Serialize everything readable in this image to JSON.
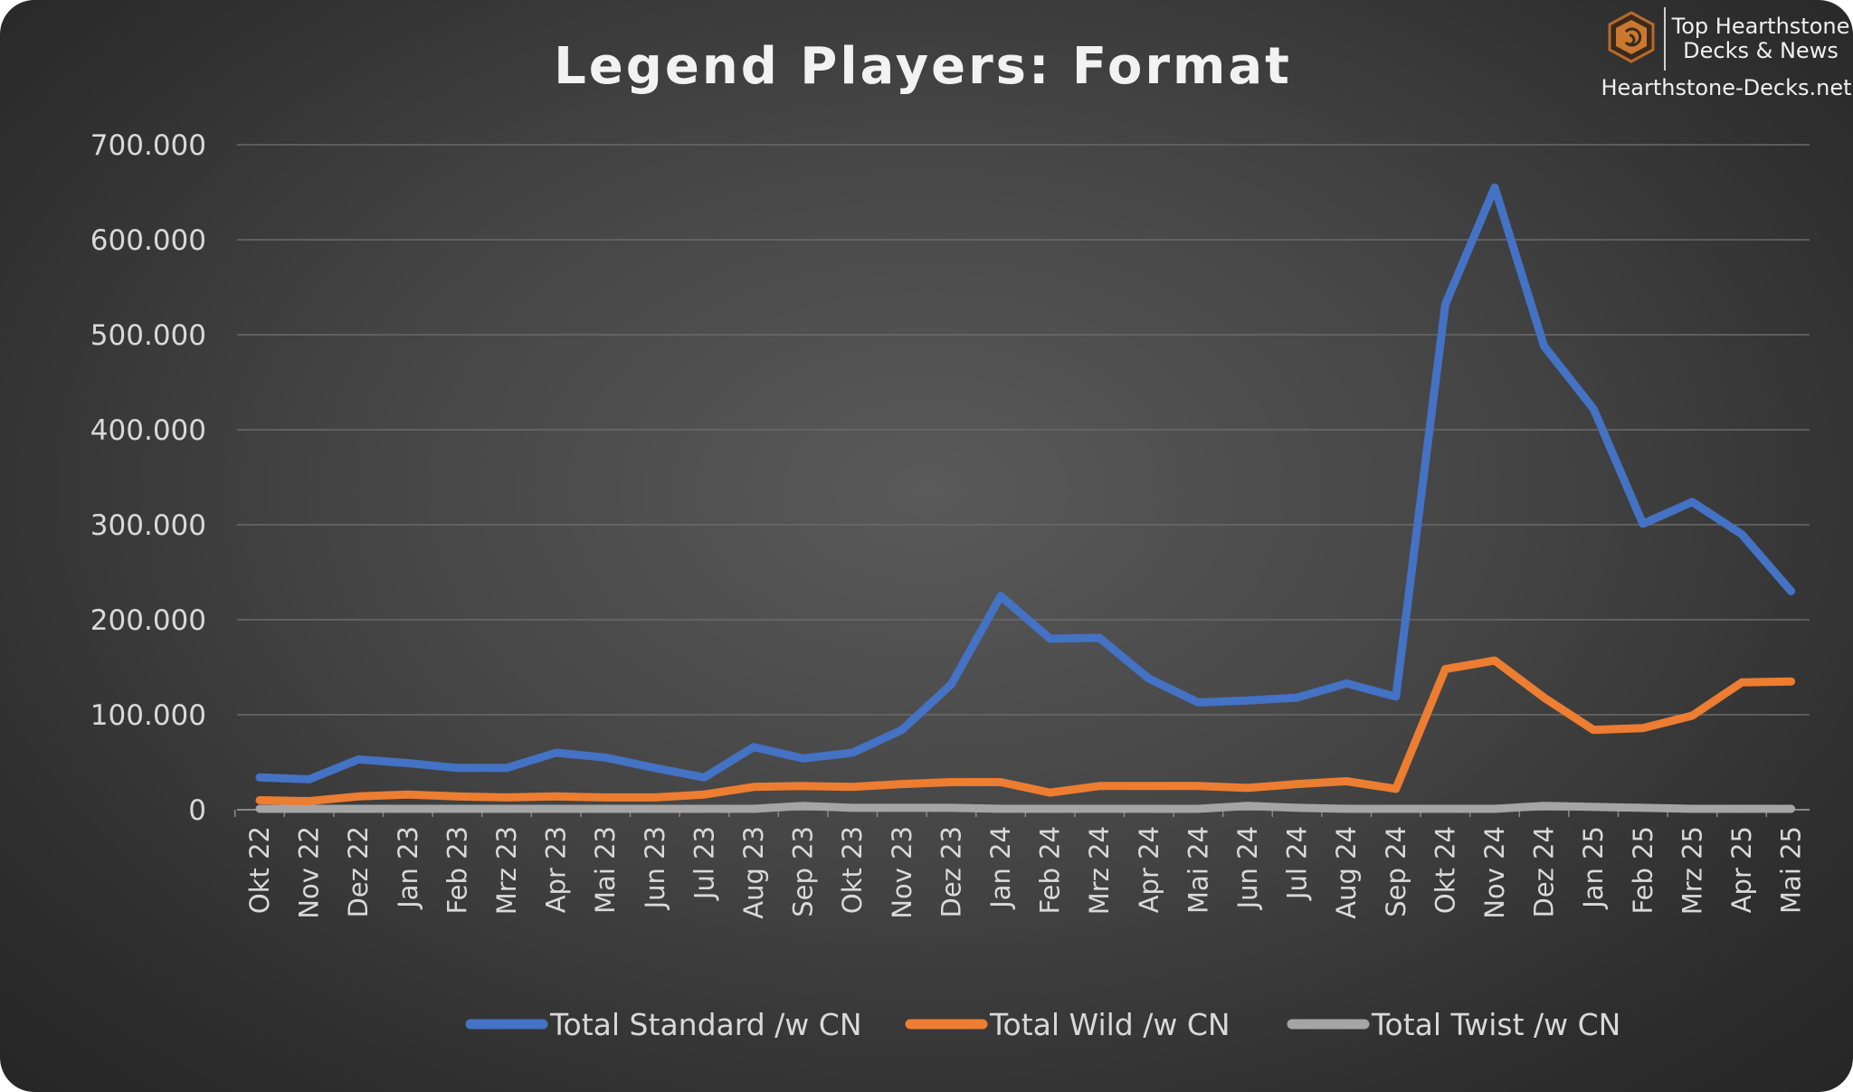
{
  "chart_data": {
    "type": "line",
    "title": "Legend Players: Format",
    "xlabel": "",
    "ylabel": "",
    "ylim": [
      0,
      700000
    ],
    "y_ticks": [
      0,
      100000,
      200000,
      300000,
      400000,
      500000,
      600000,
      700000
    ],
    "y_tick_labels": [
      "0",
      "100.000",
      "200.000",
      "300.000",
      "400.000",
      "500.000",
      "600.000",
      "700.000"
    ],
    "grid": true,
    "legend_position": "bottom",
    "categories": [
      "Okt 22",
      "Nov 22",
      "Dez 22",
      "Jan 23",
      "Feb 23",
      "Mrz 23",
      "Apr 23",
      "Mai 23",
      "Jun 23",
      "Jul 23",
      "Aug 23",
      "Sep 23",
      "Okt 23",
      "Nov 23",
      "Dez 23",
      "Jan 24",
      "Feb 24",
      "Mrz 24",
      "Apr 24",
      "Mai 24",
      "Jun 24",
      "Jul 24",
      "Aug 24",
      "Sep 24",
      "Okt 24",
      "Nov 24",
      "Dez 24",
      "Jan 25",
      "Feb 25",
      "Mrz 25",
      "Apr 25",
      "Mai 25"
    ],
    "series": [
      {
        "name": "Total Standard /w CN",
        "color": "#4472c4",
        "values": [
          34000,
          32000,
          53000,
          49000,
          44000,
          44000,
          60000,
          55000,
          44000,
          34000,
          66000,
          54000,
          60000,
          84000,
          132000,
          225000,
          180000,
          181000,
          138000,
          113000,
          115000,
          118000,
          133000,
          119000,
          532000,
          655000,
          488000,
          422000,
          301000,
          324000,
          290000,
          230000
        ]
      },
      {
        "name": "Total Wild /w CN",
        "color": "#ed7d31",
        "values": [
          10000,
          9000,
          14000,
          16000,
          14000,
          13000,
          14000,
          13000,
          13000,
          16000,
          24000,
          25000,
          24000,
          27000,
          29000,
          29000,
          18000,
          25000,
          25000,
          25000,
          23000,
          27000,
          30000,
          22000,
          148000,
          157000,
          118000,
          84000,
          86000,
          99000,
          134000,
          135000
        ]
      },
      {
        "name": "Total Twist /w CN",
        "color": "#a5a5a5",
        "values": [
          1000,
          1000,
          1000,
          1000,
          1000,
          1000,
          1000,
          1000,
          1000,
          1000,
          1000,
          4000,
          2000,
          2000,
          2000,
          1000,
          1000,
          1000,
          1000,
          1000,
          4000,
          2000,
          1000,
          1000,
          1000,
          1000,
          4000,
          3000,
          2000,
          1000,
          1000,
          1000
        ]
      }
    ]
  },
  "brand": {
    "line1": "Top Hearthstone",
    "line2": "Decks & News",
    "site": "Hearthstone-Decks.net"
  }
}
